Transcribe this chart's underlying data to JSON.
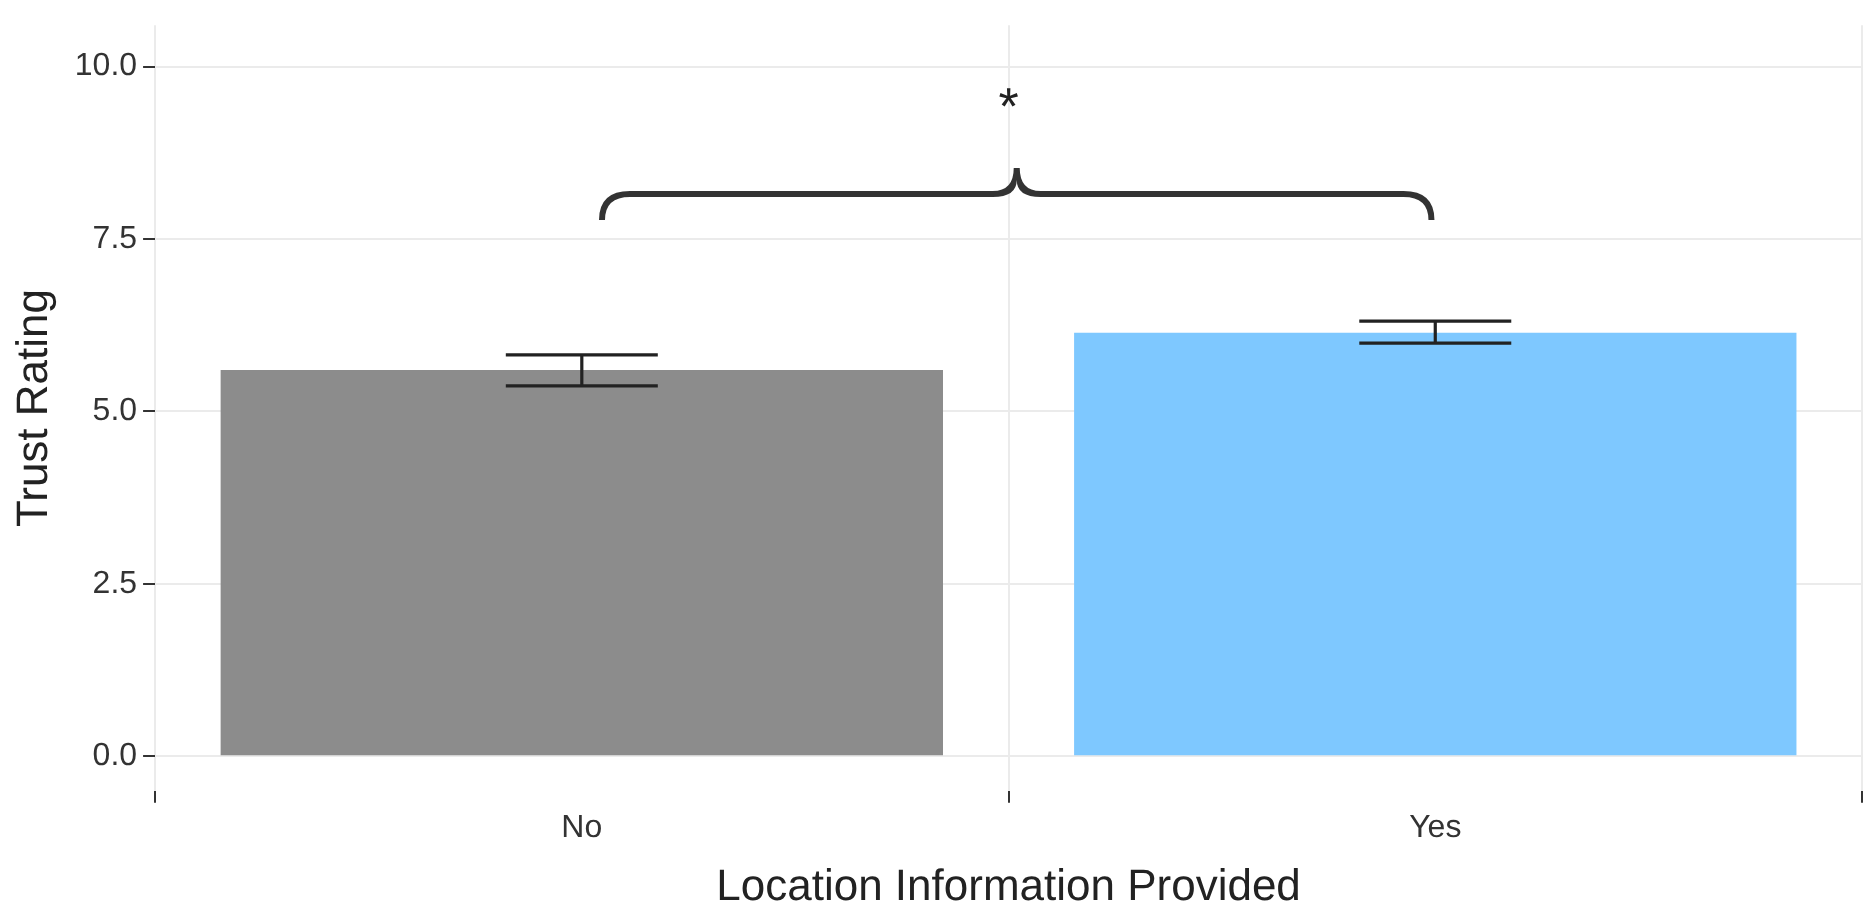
{
  "chart_data": {
    "type": "bar",
    "xlabel": "Location Information Provided",
    "ylabel": "Trust Rating",
    "categories": [
      "No",
      "Yes"
    ],
    "values": [
      5.6,
      6.14
    ],
    "colors": [
      "#8c8c8c",
      "#7ec8ff"
    ],
    "errors": [
      [
        5.37,
        5.82
      ],
      [
        5.99,
        6.31
      ]
    ],
    "ylim": [
      -0.5,
      10.6
    ],
    "yticks": [
      {
        "value": 0,
        "label": "0.0"
      },
      {
        "value": 2.5,
        "label": "2.5"
      },
      {
        "value": 5,
        "label": "5.0"
      },
      {
        "value": 7.5,
        "label": "7.5"
      },
      {
        "value": 10,
        "label": "10.0"
      }
    ],
    "grid": true,
    "legend": false,
    "annotations": [
      "*"
    ]
  }
}
